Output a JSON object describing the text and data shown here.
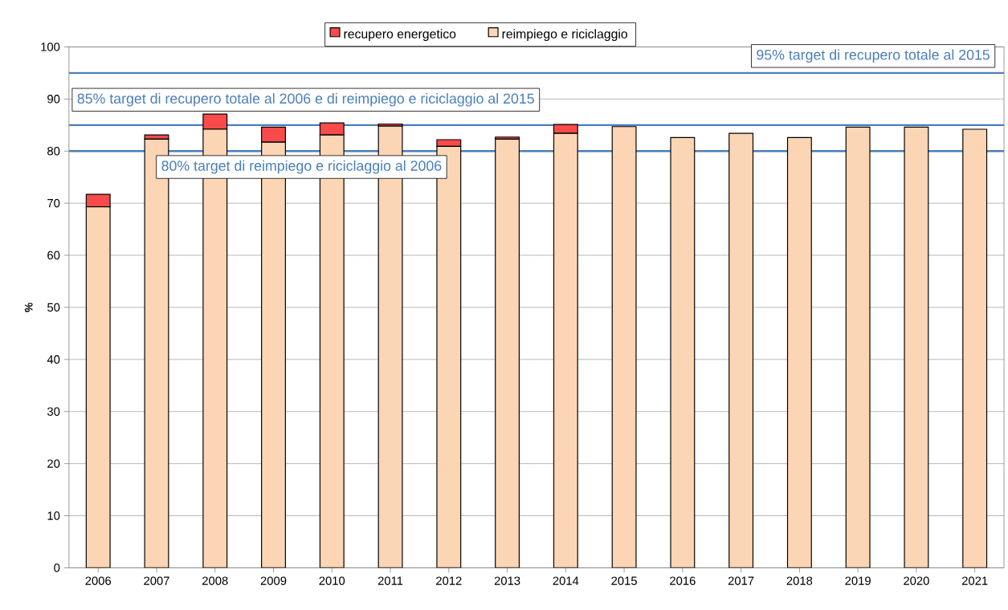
{
  "chart_data": {
    "type": "bar",
    "stacked": true,
    "ylabel": "%",
    "categories": [
      "2006",
      "2007",
      "2008",
      "2009",
      "2010",
      "2011",
      "2012",
      "2013",
      "2014",
      "2015",
      "2016",
      "2017",
      "2018",
      "2019",
      "2020",
      "2021"
    ],
    "series": [
      {
        "name": "reimpiego e riciclaggio",
        "color": "#fcd5b4",
        "values": [
          69.3,
          82.3,
          84.2,
          81.7,
          83.1,
          84.8,
          80.9,
          82.3,
          83.4,
          84.7,
          82.6,
          83.4,
          82.6,
          84.6,
          84.6,
          84.2
        ]
      },
      {
        "name": "recupero energetico",
        "color": "#f94b4b",
        "values": [
          2.4,
          0.8,
          2.9,
          2.9,
          2.3,
          0.4,
          1.3,
          0.4,
          1.7,
          0,
          0,
          0,
          0,
          0,
          0,
          0
        ]
      }
    ],
    "ylim": [
      0,
      100
    ],
    "yticks": [
      0,
      10,
      20,
      30,
      40,
      50,
      60,
      70,
      80,
      90,
      100
    ],
    "grid": "y",
    "legend": "top",
    "ref_lines": [
      {
        "axis": "y",
        "value": 95,
        "label": "95% target di recupero totale al 2015",
        "color": "#4a7ebb"
      },
      {
        "axis": "y",
        "value": 85,
        "label": "85% target di recupero totale al 2006 e di reimpiego e riciclaggio al 2015",
        "color": "#4a7ebb"
      },
      {
        "axis": "y",
        "value": 80,
        "label": "80% target di  reimpiego e riciclaggio al 2006",
        "color": "#4a7ebb"
      }
    ]
  }
}
